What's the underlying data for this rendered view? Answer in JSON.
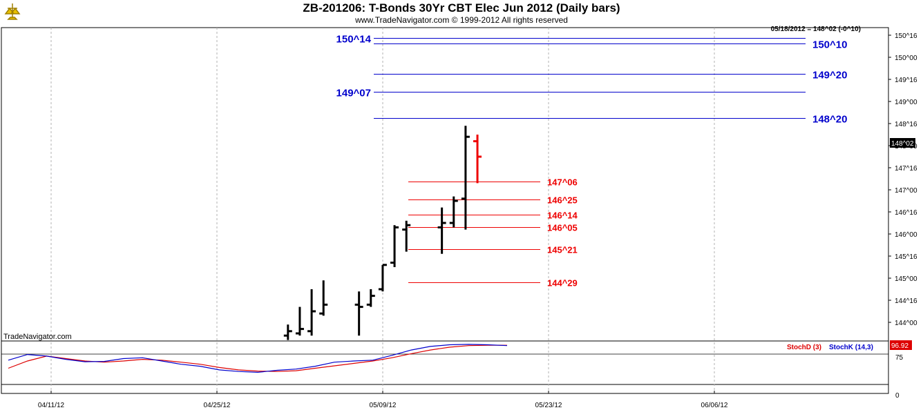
{
  "header": {
    "title": "ZB-201206:  T-Bonds 30Yr CBT Elec Jun 2012  (Daily bars)",
    "subtitle": "www.TradeNavigator.com © 1999-2012 All rights reserved",
    "status": "05/18/2012 = 148^02 (-0^10)",
    "watermark": "TradeNavigator.com"
  },
  "colors": {
    "blue_levels": "#0000cc",
    "red_levels": "#ee0000",
    "bars": "#000000",
    "down_bar": "#ee0000",
    "stochD": "#dd0000",
    "stochK": "#0000cc",
    "grid": "#b0b0b0"
  },
  "chart_data": [
    {
      "type": "ohlc",
      "title": "ZB-201206:  T-Bonds 30Yr CBT Elec Jun 2012  (Daily bars)",
      "y_unit": "points^32nds",
      "y_ticks": [
        "150^16",
        "150^00",
        "149^16",
        "149^00",
        "148^16",
        "148^00",
        "147^16",
        "147^00",
        "146^16",
        "146^00",
        "145^16",
        "145^00",
        "144^16",
        "144^00"
      ],
      "last_price_label": "148^02",
      "x_ticks": [
        "04/11/12",
        "04/25/12",
        "05/09/12",
        "05/23/12",
        "06/06/12"
      ],
      "bars": [
        {
          "date": "05/01/12",
          "open": 143.7,
          "high": 143.95,
          "low": 143.6,
          "close": 143.8
        },
        {
          "date": "05/02/12",
          "open": 143.75,
          "high": 144.35,
          "low": 143.7,
          "close": 143.85
        },
        {
          "date": "05/03/12",
          "open": 143.8,
          "high": 144.75,
          "low": 143.7,
          "close": 144.25
        },
        {
          "date": "05/04/12",
          "open": 144.2,
          "high": 144.95,
          "low": 144.15,
          "close": 144.4
        },
        {
          "date": "05/07/12",
          "open": 144.4,
          "high": 144.7,
          "low": 143.7,
          "close": 144.35
        },
        {
          "date": "05/08/12",
          "open": 144.4,
          "high": 144.75,
          "low": 144.35,
          "close": 144.6
        },
        {
          "date": "05/09/12",
          "open": 144.75,
          "high": 145.3,
          "low": 144.7,
          "close": 145.3
        },
        {
          "date": "05/10/12",
          "open": 145.35,
          "high": 146.2,
          "low": 145.25,
          "close": 146.15
        },
        {
          "date": "05/11/12",
          "open": 146.1,
          "high": 146.3,
          "low": 145.6,
          "close": 146.2
        },
        {
          "date": "05/14/12",
          "open": 146.15,
          "high": 146.6,
          "low": 145.55,
          "close": 146.25
        },
        {
          "date": "05/15/12",
          "open": 146.25,
          "high": 146.85,
          "low": 146.15,
          "close": 146.75
        },
        {
          "date": "05/16/12",
          "open": 146.8,
          "high": 148.45,
          "low": 146.1,
          "close": 148.2
        },
        {
          "date": "05/17/12",
          "open": 148.1,
          "high": 148.25,
          "low": 147.15,
          "close": 147.75
        }
      ],
      "levels": [
        {
          "label": "150^14",
          "value": 150.4375,
          "color": "blue",
          "side": "left"
        },
        {
          "label": "150^10",
          "value": 150.3125,
          "color": "blue",
          "side": "right"
        },
        {
          "label": "149^20",
          "value": 149.625,
          "color": "blue",
          "side": "right"
        },
        {
          "label": "149^07",
          "value": 149.21875,
          "color": "blue",
          "side": "left"
        },
        {
          "label": "148^20",
          "value": 148.625,
          "color": "blue",
          "side": "right"
        },
        {
          "label": "147^06",
          "value": 147.1875,
          "color": "red",
          "side": "right"
        },
        {
          "label": "146^25",
          "value": 146.78125,
          "color": "red",
          "side": "right"
        },
        {
          "label": "146^14",
          "value": 146.4375,
          "color": "red",
          "side": "right"
        },
        {
          "label": "146^05",
          "value": 146.15625,
          "color": "red",
          "side": "right"
        },
        {
          "label": "145^21",
          "value": 145.65625,
          "color": "red",
          "side": "right"
        },
        {
          "label": "144^29",
          "value": 144.90625,
          "color": "red",
          "side": "right"
        }
      ]
    },
    {
      "type": "line",
      "indicator": "Stochastics",
      "y_ticks": [
        "75",
        "0"
      ],
      "last_value_label": "96.92",
      "series": [
        {
          "name": "StochD (3)",
          "values": [
            40,
            58,
            70,
            64,
            58,
            55,
            58,
            62,
            60,
            55,
            50,
            42,
            36,
            33,
            32,
            34,
            40,
            46,
            52,
            58,
            66,
            76,
            85,
            92,
            96,
            97,
            96.9
          ]
        },
        {
          "name": "StochK (14,3)",
          "values": [
            60,
            74,
            70,
            62,
            56,
            57,
            64,
            66,
            58,
            50,
            45,
            36,
            32,
            30,
            35,
            38,
            45,
            55,
            58,
            60,
            72,
            85,
            94,
            98,
            99,
            98,
            96
          ]
        }
      ]
    }
  ]
}
